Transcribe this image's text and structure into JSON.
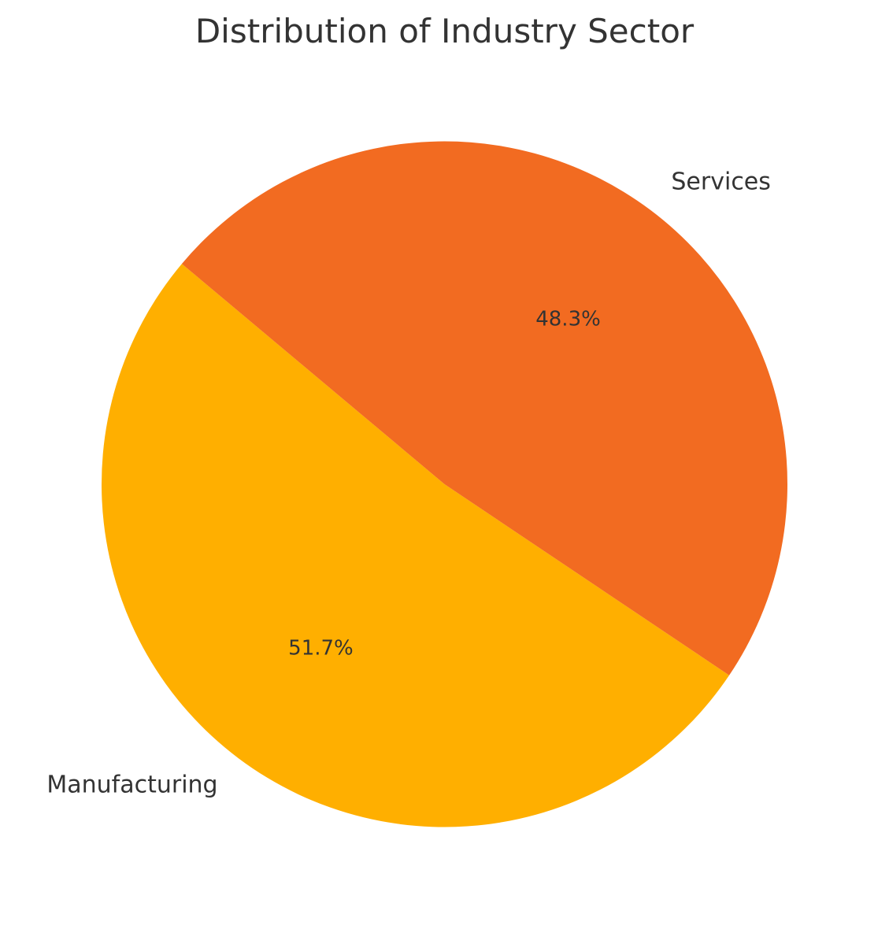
{
  "chart_data": {
    "type": "pie",
    "title": "Distribution of Industry Sector",
    "slices": [
      {
        "label": "Manufacturing",
        "value": 51.7,
        "pct_label": "51.7%",
        "color": "#FFAF00"
      },
      {
        "label": "Services",
        "value": 48.3,
        "pct_label": "48.3%",
        "color": "#F26B21"
      }
    ],
    "start_angle_deg": 140,
    "direction": "counterclockwise",
    "legend": "none"
  }
}
